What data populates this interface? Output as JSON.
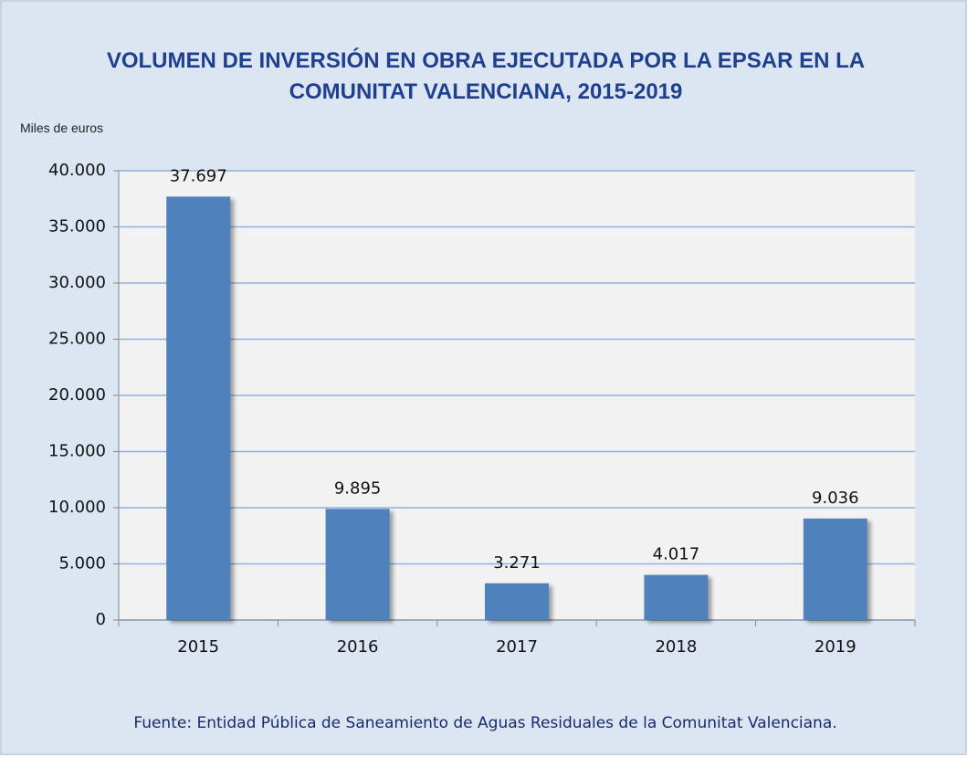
{
  "chart_data": {
    "type": "bar",
    "title": "VOLUMEN DE INVERSIÓN EN OBRA EJECUTADA POR LA EPSAR EN LA COMUNITAT VALENCIANA, 2015-2019",
    "y_label": "Miles de euros",
    "source": "Fuente: Entidad Pública de Saneamiento de Aguas Residuales de la Comunitat Valenciana.",
    "categories": [
      "2015",
      "2016",
      "2017",
      "2018",
      "2019"
    ],
    "values": [
      37697,
      9895,
      3271,
      4017,
      9036
    ],
    "value_labels": [
      "37.697",
      "9.895",
      "3.271",
      "4.017",
      "9.036"
    ],
    "color": "#4f81bd",
    "ylim": [
      0,
      40000
    ],
    "yticks": [
      0,
      {
        "value": 5000,
        "label": "5.000"
      },
      {
        "value": 10000,
        "label": "10.000"
      },
      {
        "value": 15000,
        "label": "15.000"
      },
      {
        "value": 20000,
        "label": "20.000"
      },
      {
        "value": 25000,
        "label": "25.000"
      },
      {
        "value": 30000,
        "label": "30.000"
      },
      {
        "value": 35000,
        "label": "35.000"
      },
      {
        "value": 40000,
        "label": "40.000"
      }
    ],
    "grid": true
  }
}
